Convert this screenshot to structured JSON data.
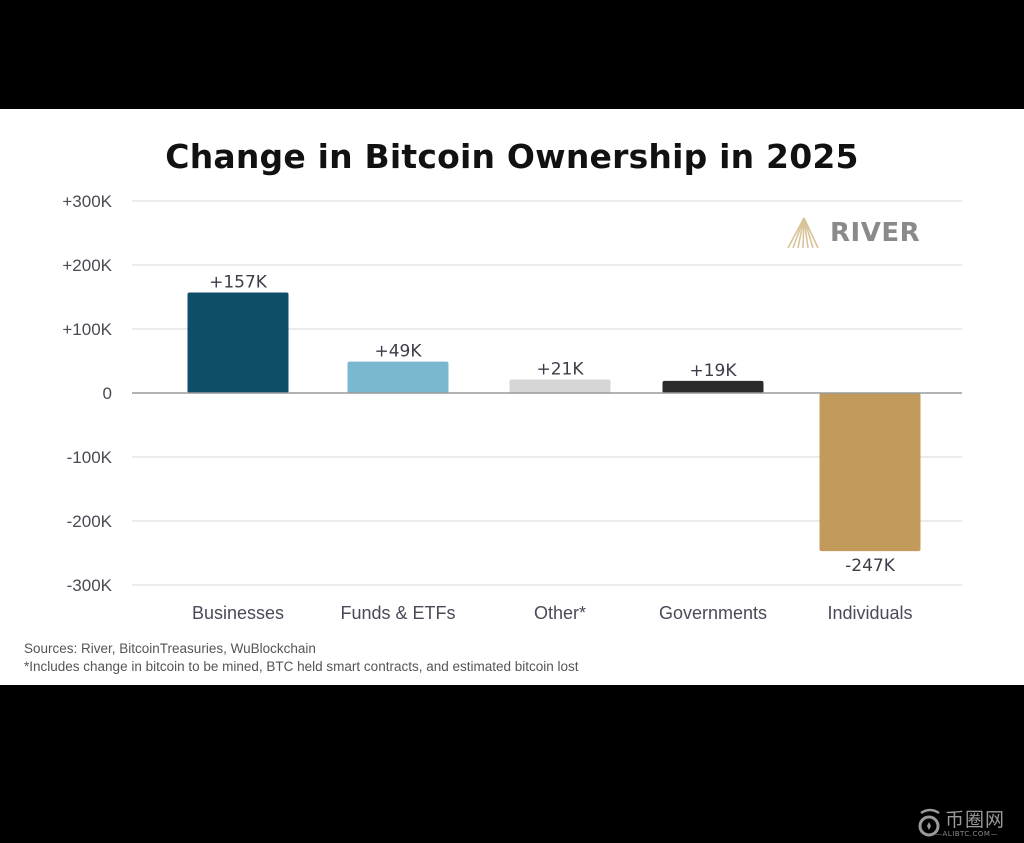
{
  "chart_data": {
    "type": "bar",
    "title": "Change in Bitcoin Ownership in 2025",
    "categories": [
      "Businesses",
      "Funds & ETFs",
      "Other*",
      "Governments",
      "Individuals"
    ],
    "values": [
      157000,
      49000,
      21000,
      19000,
      -247000
    ],
    "data_labels": [
      "+157K",
      "+49K",
      "+21K",
      "+19K",
      "-247K"
    ],
    "colors": [
      "#0d4e68",
      "#7ab8cf",
      "#d6d6d6",
      "#2b2b2b",
      "#c29a5c"
    ],
    "xlabel": "",
    "ylabel": "",
    "ylim": [
      -300000,
      300000
    ],
    "yticks": [
      300000,
      200000,
      100000,
      0,
      -100000,
      -200000,
      -300000
    ],
    "ytick_labels": [
      "+300K",
      "+200K",
      "+100K",
      "0",
      "-100K",
      "-200K",
      "-300K"
    ],
    "grid": true,
    "legend": "none"
  },
  "logo": {
    "text": "RIVER",
    "mark_color": "#d9c49a",
    "text_color": "#8a8a8a"
  },
  "footer": {
    "sources": "Sources: River, BitcoinTreasuries, WuBlockchain",
    "note": "*Includes change in bitcoin to be mined, BTC held smart contracts, and estimated bitcoin lost"
  },
  "watermark": {
    "text": "币圈网",
    "sub": "—ALIBTC.COM—"
  }
}
